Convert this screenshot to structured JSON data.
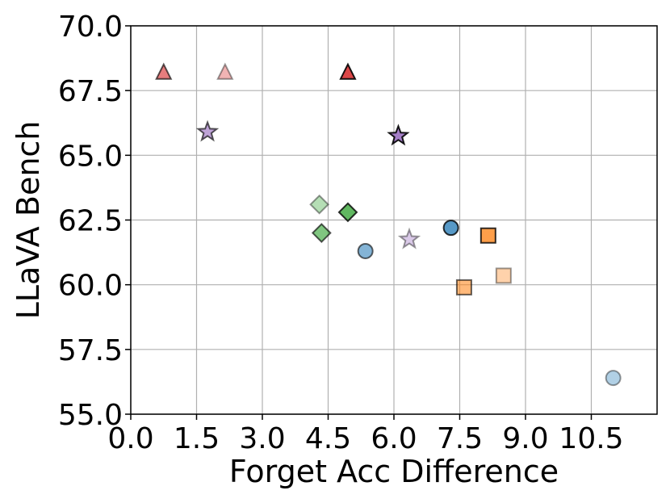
{
  "chart_data": {
    "type": "scatter",
    "title": "",
    "xlabel": "Forget Acc Difference",
    "ylabel": "LLaVA Bench",
    "xlim": [
      0.0,
      12.0
    ],
    "ylim": [
      55.0,
      70.0
    ],
    "x_ticks": [
      "0.0",
      "1.5",
      "3.0",
      "4.5",
      "6.0",
      "7.5",
      "9.0",
      "10.5"
    ],
    "y_ticks": [
      "55.0",
      "57.5",
      "60.0",
      "62.5",
      "65.0",
      "67.5",
      "70.0"
    ],
    "grid": true,
    "legend": "none",
    "series": [
      {
        "marker": "triangle",
        "color": "#d62728",
        "points": [
          {
            "x": 0.75,
            "y": 68.2,
            "alpha": 0.6
          },
          {
            "x": 2.15,
            "y": 68.2,
            "alpha": 0.35
          },
          {
            "x": 4.95,
            "y": 68.2,
            "alpha": 0.85
          }
        ]
      },
      {
        "marker": "star",
        "color": "#9467bd",
        "points": [
          {
            "x": 1.75,
            "y": 65.9,
            "alpha": 0.6
          },
          {
            "x": 6.1,
            "y": 65.75,
            "alpha": 0.85
          },
          {
            "x": 6.35,
            "y": 61.75,
            "alpha": 0.35
          }
        ]
      },
      {
        "marker": "diamond",
        "color": "#2ca02c",
        "points": [
          {
            "x": 4.3,
            "y": 63.1,
            "alpha": 0.35
          },
          {
            "x": 4.95,
            "y": 62.8,
            "alpha": 0.75
          },
          {
            "x": 4.35,
            "y": 62.0,
            "alpha": 0.6
          }
        ]
      },
      {
        "marker": "circle",
        "color": "#1f77b4",
        "points": [
          {
            "x": 5.35,
            "y": 61.3,
            "alpha": 0.55
          },
          {
            "x": 7.3,
            "y": 62.2,
            "alpha": 0.75
          },
          {
            "x": 11.0,
            "y": 56.4,
            "alpha": 0.35
          }
        ]
      },
      {
        "marker": "square",
        "color": "#ff7f0e",
        "points": [
          {
            "x": 8.15,
            "y": 61.9,
            "alpha": 0.75
          },
          {
            "x": 7.6,
            "y": 59.9,
            "alpha": 0.55
          },
          {
            "x": 8.5,
            "y": 60.35,
            "alpha": 0.35
          }
        ]
      }
    ]
  }
}
